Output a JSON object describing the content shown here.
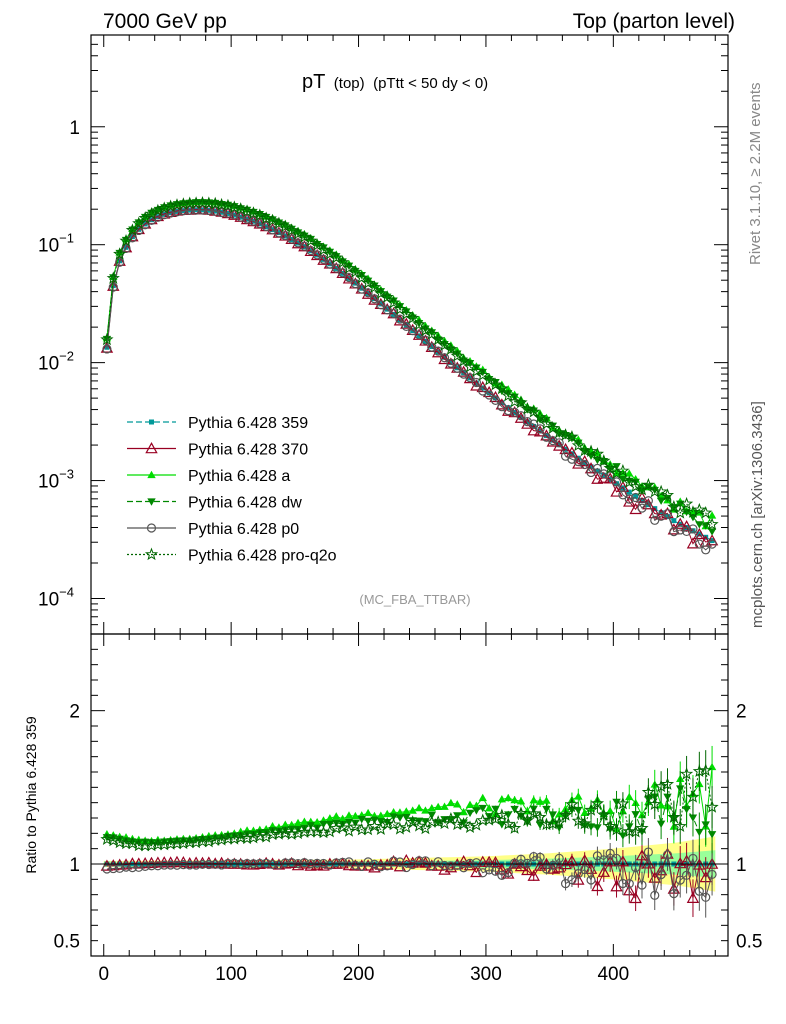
{
  "header": {
    "left": "7000 GeV pp",
    "right": "Top (parton level)"
  },
  "plot_title": {
    "main": "pT",
    "sub1": "(top)",
    "sub2": "(pTtt < 50 dy < 0)"
  },
  "side_text": {
    "rivet": "Rivet 3.1.10, ≥ 2.2M events",
    "mcplots": "mcplots.cern.ch [arXiv:1306.3436]"
  },
  "analysis_label": "(MC_FBA_TTBAR)",
  "ratio_ylabel": "Ratio to Pythia 6.428 359",
  "colors": {
    "p359": "#009999",
    "p370": "#990022",
    "pa": "#00dd00",
    "pdw": "#008800",
    "pp0": "#555555",
    "pq2o": "#006600",
    "band_yellow": "#ffff88",
    "band_green": "#99ff99"
  },
  "chart_data": {
    "type": "line",
    "main_plot": {
      "y_scale": "log",
      "xlim": [
        -10,
        490
      ],
      "ylim": [
        5e-05,
        6
      ],
      "yticks": [
        {
          "value": 0.0001,
          "label": "10",
          "exp": "−4"
        },
        {
          "value": 0.001,
          "label": "10",
          "exp": "−3"
        },
        {
          "value": 0.01,
          "label": "10",
          "exp": "−2"
        },
        {
          "value": 0.1,
          "label": "10",
          "exp": "−1"
        },
        {
          "value": 1,
          "label": "1",
          "exp": ""
        }
      ]
    },
    "ratio_plot": {
      "ylim": [
        0.4,
        2.5
      ],
      "yticks": [
        {
          "value": 0.5,
          "label": "0.5"
        },
        {
          "value": 1,
          "label": "1"
        },
        {
          "value": 2,
          "label": "2"
        }
      ]
    },
    "xticks": [
      0,
      100,
      200,
      300,
      400
    ],
    "ref_anchors": {
      "x": [
        2.5,
        7.5,
        12.5,
        17.5,
        22.5,
        27.5,
        35,
        45,
        55,
        65,
        75,
        85,
        100,
        120,
        140,
        160,
        180,
        200,
        225,
        250,
        275,
        300,
        325,
        350,
        375,
        400,
        425,
        450,
        477.5
      ],
      "y": [
        0.0135,
        0.045,
        0.073,
        0.095,
        0.117,
        0.135,
        0.158,
        0.178,
        0.19,
        0.196,
        0.198,
        0.195,
        0.182,
        0.155,
        0.123,
        0.093,
        0.066,
        0.045,
        0.027,
        0.016,
        0.0095,
        0.0058,
        0.0036,
        0.0023,
        0.00148,
        0.00098,
        0.00065,
        0.00044,
        0.00031
      ]
    },
    "series": [
      {
        "key": "p359",
        "name": "Pythia 6.428 359",
        "marker": "square",
        "dash": "6,3",
        "ratio_anchors": {
          "x": [
            0,
            480
          ],
          "y": [
            1,
            1
          ]
        }
      },
      {
        "key": "p370",
        "name": "Pythia 6.428 370",
        "marker": "triangle-open",
        "dash": "",
        "ratio_anchors": {
          "x": [
            0,
            50,
            100,
            150,
            200,
            250,
            300,
            350,
            400,
            450,
            480
          ],
          "y": [
            0.99,
            1.01,
            1.0,
            1.0,
            0.99,
            1.0,
            0.97,
            0.95,
            0.92,
            0.9,
            0.95
          ]
        }
      },
      {
        "key": "pa",
        "name": "Pythia 6.428 a",
        "marker": "triangle",
        "dash": "",
        "ratio_anchors": {
          "x": [
            0,
            30,
            60,
            100,
            150,
            200,
            250,
            300,
            350,
            400,
            450,
            480
          ],
          "y": [
            1.2,
            1.15,
            1.16,
            1.2,
            1.26,
            1.32,
            1.36,
            1.38,
            1.36,
            1.35,
            1.4,
            1.45
          ]
        }
      },
      {
        "key": "pdw",
        "name": "Pythia 6.428 dw",
        "marker": "triangle-down",
        "dash": "6,3",
        "ratio_anchors": {
          "x": [
            0,
            30,
            60,
            100,
            150,
            200,
            250,
            300,
            350,
            400,
            450,
            480
          ],
          "y": [
            1.18,
            1.14,
            1.15,
            1.18,
            1.23,
            1.28,
            1.3,
            1.32,
            1.3,
            1.31,
            1.34,
            1.4
          ]
        }
      },
      {
        "key": "pp0",
        "name": "Pythia 6.428 p0",
        "marker": "circle-open",
        "dash": "",
        "ratio_anchors": {
          "x": [
            0,
            50,
            100,
            150,
            200,
            250,
            300,
            350,
            400,
            450,
            480
          ],
          "y": [
            0.97,
            0.99,
            1.0,
            1.0,
            1.0,
            1.0,
            0.99,
            0.97,
            0.95,
            0.93,
            0.95
          ]
        }
      },
      {
        "key": "pq2o",
        "name": "Pythia 6.428 pro-q2o",
        "marker": "star-open",
        "dash": "2,2",
        "ratio_anchors": {
          "x": [
            0,
            30,
            60,
            100,
            150,
            200,
            250,
            300,
            350,
            400,
            450,
            480
          ],
          "y": [
            1.16,
            1.12,
            1.13,
            1.16,
            1.2,
            1.23,
            1.25,
            1.27,
            1.3,
            1.33,
            1.38,
            1.45
          ]
        }
      }
    ],
    "band": {
      "x": [
        0,
        200,
        300,
        350,
        400,
        450,
        480
      ],
      "yellow_half": [
        0.02,
        0.03,
        0.05,
        0.07,
        0.1,
        0.14,
        0.18
      ],
      "green_half": [
        0.01,
        0.015,
        0.025,
        0.035,
        0.05,
        0.07,
        0.09
      ]
    }
  }
}
